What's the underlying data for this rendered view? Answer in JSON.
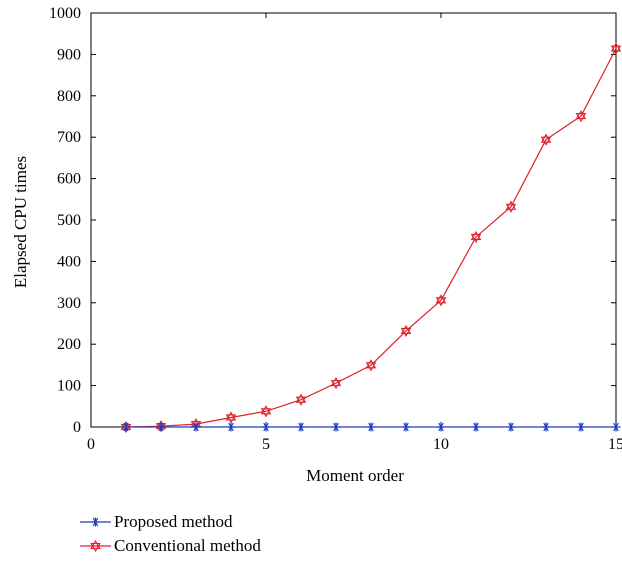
{
  "chart_data": {
    "type": "line",
    "xlabel": "Moment order",
    "ylabel": "Elapsed CPU times",
    "xlim": [
      0,
      15
    ],
    "ylim": [
      0,
      1000
    ],
    "xticks": [
      "0",
      "5",
      "10",
      "15"
    ],
    "yticks": [
      "0",
      "100",
      "200",
      "300",
      "400",
      "500",
      "600",
      "700",
      "800",
      "900",
      "1000"
    ],
    "grid": false,
    "legend_position": "below",
    "x": [
      1,
      2,
      3,
      4,
      5,
      6,
      7,
      8,
      9,
      10,
      11,
      12,
      13,
      14,
      15
    ],
    "series": [
      {
        "name": "Proposed method",
        "color": "#1f3fbf",
        "marker": "asterisk",
        "values": [
          0,
          0,
          0,
          0,
          0,
          0,
          0,
          0,
          0,
          0,
          0,
          0,
          0,
          0,
          0
        ]
      },
      {
        "name": "Conventional method",
        "color": "#e0202a",
        "marker": "hexagram",
        "values": [
          0,
          2,
          7,
          23,
          38,
          66,
          106,
          149,
          232,
          306,
          459,
          532,
          694,
          751,
          914
        ]
      }
    ]
  }
}
